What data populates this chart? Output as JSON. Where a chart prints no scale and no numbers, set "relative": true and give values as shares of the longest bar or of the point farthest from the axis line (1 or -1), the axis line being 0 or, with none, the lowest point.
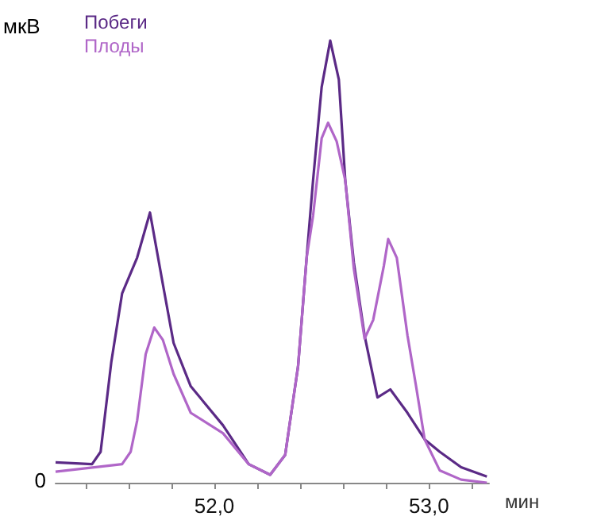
{
  "chart_data": {
    "type": "line",
    "relative": true,
    "xlabel": "мин",
    "ylabel": "мкВ",
    "annotations": [
      "0"
    ],
    "legend": "top left",
    "marker": "none",
    "line_style": "solid",
    "xlim": [
      51.26,
      53.28
    ],
    "xticks": [
      {
        "value": 51.4,
        "label": null
      },
      {
        "value": 51.6,
        "label": null
      },
      {
        "value": 51.8,
        "label": null
      },
      {
        "value": 52,
        "label": "52,0"
      },
      {
        "value": 52.2,
        "label": null
      },
      {
        "value": 52.4,
        "label": null
      },
      {
        "value": 52.6,
        "label": null
      },
      {
        "value": 52.8,
        "label": null
      },
      {
        "value": 53,
        "label": "53,0"
      },
      {
        "value": 53.2,
        "label": null
      }
    ],
    "series": [
      {
        "name": "Побеги",
        "color": "#5b2a86",
        "x": [
          51.26,
          51.43,
          51.47,
          51.52,
          51.57,
          51.64,
          51.7,
          51.76,
          51.81,
          51.89,
          52.04,
          52.16,
          52.26,
          52.33,
          52.39,
          52.43,
          52.46,
          52.5,
          52.54,
          52.58,
          52.61,
          52.65,
          52.7,
          52.76,
          52.82,
          52.9,
          52.98,
          53.05,
          53.15,
          53.27
        ],
        "values": [
          0.046,
          0.042,
          0.07,
          0.274,
          0.428,
          0.509,
          0.611,
          0.449,
          0.316,
          0.218,
          0.13,
          0.042,
          0.018,
          0.063,
          0.263,
          0.509,
          0.684,
          0.895,
          1.0,
          0.912,
          0.684,
          0.498,
          0.333,
          0.193,
          0.211,
          0.158,
          0.098,
          0.07,
          0.035,
          0.014
        ]
      },
      {
        "name": "Плоды",
        "color": "#b066c8",
        "x": [
          51.26,
          51.57,
          51.61,
          51.64,
          51.68,
          51.72,
          51.76,
          51.81,
          51.89,
          52.04,
          52.16,
          52.26,
          52.33,
          52.39,
          52.43,
          52.46,
          52.5,
          52.53,
          52.57,
          52.61,
          52.65,
          52.7,
          52.74,
          52.79,
          52.81,
          52.85,
          52.9,
          52.94,
          52.98,
          53.05,
          53.15,
          53.27
        ],
        "values": [
          0.025,
          0.042,
          0.07,
          0.14,
          0.291,
          0.351,
          0.323,
          0.246,
          0.158,
          0.112,
          0.042,
          0.018,
          0.063,
          0.263,
          0.509,
          0.604,
          0.779,
          0.814,
          0.772,
          0.684,
          0.484,
          0.326,
          0.368,
          0.491,
          0.551,
          0.509,
          0.333,
          0.218,
          0.098,
          0.028,
          0.007,
          0
        ]
      }
    ]
  }
}
